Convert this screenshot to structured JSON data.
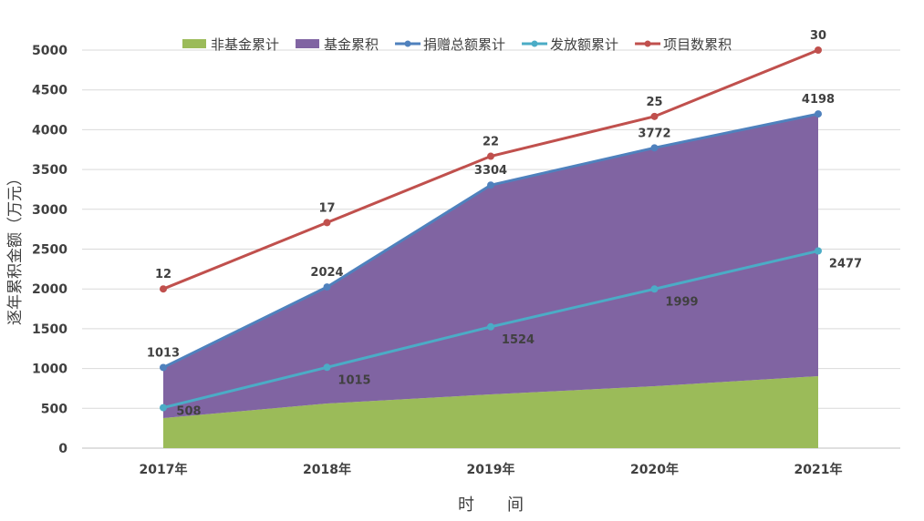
{
  "chart_data": {
    "type": "area+line",
    "title": "",
    "xlabel": "时　　间",
    "ylabel": "逐年累积金额（万元）",
    "ylim": [
      0,
      5000
    ],
    "yticks": [
      0,
      500,
      1000,
      1500,
      2000,
      2500,
      3000,
      3500,
      4000,
      4500,
      5000
    ],
    "categories": [
      "2017年",
      "2018年",
      "2019年",
      "2020年",
      "2021年"
    ],
    "grid": true,
    "legend_position": "top",
    "series": [
      {
        "name": "非基金累计",
        "kind": "stacked-area",
        "color": "#9BBB59",
        "values": [
          378,
          560,
          675,
          778,
          904
        ],
        "labels": false
      },
      {
        "name": "基金累积",
        "kind": "stacked-area",
        "color": "#8064A2",
        "values": [
          635,
          1464,
          2629,
          2994,
          3294
        ],
        "labels": false
      },
      {
        "name": "捐赠总额累计",
        "kind": "line",
        "color": "#4F81BD",
        "values": [
          1013,
          2024,
          3304,
          3772,
          4198
        ],
        "labels": true
      },
      {
        "name": "发放额累计",
        "kind": "line",
        "color": "#4BACC6",
        "values": [
          508,
          1015,
          1524,
          1999,
          2477
        ],
        "labels": true
      },
      {
        "name": "项目数累积",
        "kind": "line",
        "color": "#C0504D",
        "values": [
          12,
          17,
          22,
          25,
          30
        ],
        "labels": true,
        "secondary_axis_hidden": true,
        "secondary_ylim": [
          0,
          30
        ]
      }
    ]
  }
}
